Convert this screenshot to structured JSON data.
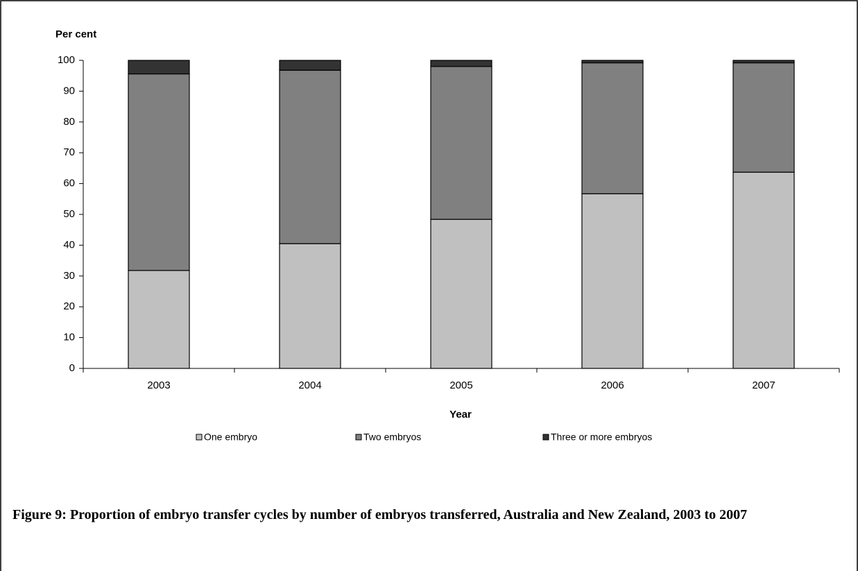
{
  "chart_data": {
    "type": "stacked-bar",
    "title": "Figure 9: Proportion of embryo transfer cycles by number of embryos transferred, Australia and New Zealand, 2003 to 2007",
    "y_label": "Per cent",
    "x_label": "Year",
    "categories": [
      "2003",
      "2004",
      "2005",
      "2006",
      "2007"
    ],
    "series": [
      {
        "name": "One embryo",
        "color": "#c0c0c0",
        "values": [
          31.8,
          40.5,
          48.4,
          56.7,
          63.7
        ]
      },
      {
        "name": "Two embryos",
        "color": "#808080",
        "values": [
          63.8,
          56.3,
          49.6,
          42.5,
          35.5
        ]
      },
      {
        "name": "Three or more embryos",
        "color": "#333333",
        "values": [
          4.4,
          3.2,
          2.0,
          0.8,
          0.8
        ]
      }
    ],
    "ylim": [
      0,
      100
    ],
    "yticks": [
      0,
      10,
      20,
      30,
      40,
      50,
      60,
      70,
      80,
      90,
      100
    ],
    "grid": false
  }
}
